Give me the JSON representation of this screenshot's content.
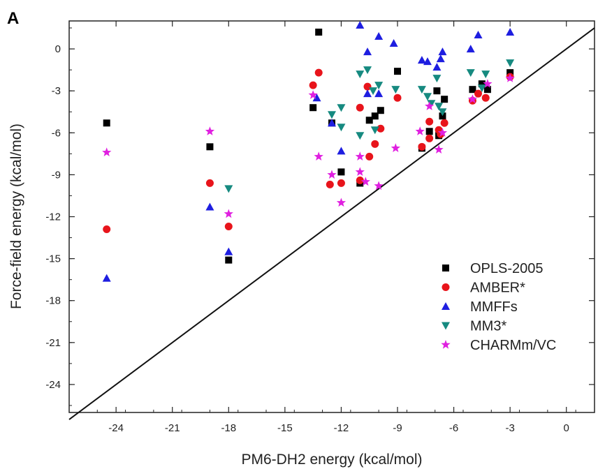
{
  "chart_data": {
    "type": "scatter",
    "panel_label": "A",
    "xlabel": "PM6-DH2 energy (kcal/mol)",
    "ylabel": "Force-field energy (kcal/mol)",
    "xlim": [
      -26.5,
      1.5
    ],
    "ylim": [
      -26,
      2
    ],
    "x_ticks": [
      -24,
      -21,
      -18,
      -15,
      -12,
      -9,
      -6,
      -3,
      0
    ],
    "y_ticks": [
      0,
      -3,
      -6,
      -9,
      -12,
      -15,
      -18,
      -21,
      -24
    ],
    "diagonal_line": {
      "from": [
        -26.5,
        -26.5
      ],
      "to": [
        1.5,
        1.5
      ]
    },
    "grid": false,
    "legend_position": "lower-right",
    "series": [
      {
        "name": "OPLS-2005",
        "marker": "square",
        "color": "#000000",
        "points": [
          [
            -24.5,
            -5.3
          ],
          [
            -19,
            -7
          ],
          [
            -18,
            -15.1
          ],
          [
            -13.5,
            -4.2
          ],
          [
            -13.2,
            1.2
          ],
          [
            -12.5,
            -5.3
          ],
          [
            -12,
            -8.8
          ],
          [
            -11,
            -9.6
          ],
          [
            -10.5,
            -5.1
          ],
          [
            -10.2,
            -4.8
          ],
          [
            -9.9,
            -4.4
          ],
          [
            -9,
            -1.6
          ],
          [
            -7.7,
            -7.1
          ],
          [
            -7.3,
            -5.9
          ],
          [
            -6.9,
            -3
          ],
          [
            -6.8,
            -6.2
          ],
          [
            -6.6,
            -4.8
          ],
          [
            -6.5,
            -3.6
          ],
          [
            -5,
            -2.9
          ],
          [
            -4.5,
            -2.5
          ],
          [
            -4.2,
            -2.9
          ],
          [
            -3,
            -1.7
          ]
        ]
      },
      {
        "name": "AMBER*",
        "marker": "circle",
        "color": "#e8141b",
        "points": [
          [
            -24.5,
            -12.9
          ],
          [
            -19,
            -9.6
          ],
          [
            -18,
            -12.7
          ],
          [
            -13.5,
            -2.6
          ],
          [
            -13.2,
            -1.7
          ],
          [
            -12.6,
            -9.7
          ],
          [
            -12,
            -9.6
          ],
          [
            -11,
            -4.2
          ],
          [
            -11,
            -9.4
          ],
          [
            -10.6,
            -2.7
          ],
          [
            -10.5,
            -7.7
          ],
          [
            -10.2,
            -6.8
          ],
          [
            -9.9,
            -5.7
          ],
          [
            -9,
            -3.5
          ],
          [
            -7.7,
            -7
          ],
          [
            -7.3,
            -6.4
          ],
          [
            -7.3,
            -5.2
          ],
          [
            -6.8,
            -5.8
          ],
          [
            -6.7,
            -6.1
          ],
          [
            -6.5,
            -5.3
          ],
          [
            -5,
            -3.7
          ],
          [
            -4.7,
            -3.2
          ],
          [
            -4.3,
            -3.5
          ],
          [
            -3,
            -2
          ]
        ]
      },
      {
        "name": "MMFFs",
        "marker": "triangle-up",
        "color": "#1e1ee0",
        "points": [
          [
            -24.5,
            -16.4
          ],
          [
            -19,
            -11.3
          ],
          [
            -18,
            -14.5
          ],
          [
            -13.3,
            -3.5
          ],
          [
            -12.5,
            -5.3
          ],
          [
            -12,
            -7.3
          ],
          [
            -11,
            1.7
          ],
          [
            -10.6,
            -0.2
          ],
          [
            -10.6,
            -3.2
          ],
          [
            -10,
            0.9
          ],
          [
            -10,
            -3.2
          ],
          [
            -9.2,
            0.4
          ],
          [
            -7.7,
            -0.8
          ],
          [
            -7.4,
            -0.9
          ],
          [
            -6.9,
            -1.3
          ],
          [
            -6.7,
            -0.7
          ],
          [
            -6.6,
            -0.2
          ],
          [
            -5.1,
            0
          ],
          [
            -4.7,
            1
          ],
          [
            -3,
            1.2
          ]
        ]
      },
      {
        "name": "MM3*",
        "marker": "triangle-down",
        "color": "#168a80",
        "points": [
          [
            -18,
            -10
          ],
          [
            -12.5,
            -4.7
          ],
          [
            -12,
            -4.2
          ],
          [
            -12,
            -5.6
          ],
          [
            -11,
            -1.8
          ],
          [
            -11,
            -6.2
          ],
          [
            -10.6,
            -1.5
          ],
          [
            -10.3,
            -3
          ],
          [
            -10.2,
            -5.8
          ],
          [
            -10,
            -2.6
          ],
          [
            -9.1,
            -2.9
          ],
          [
            -7.7,
            -2.9
          ],
          [
            -7.4,
            -3.4
          ],
          [
            -7.2,
            -3.9
          ],
          [
            -6.9,
            -2.1
          ],
          [
            -6.8,
            -4.1
          ],
          [
            -6.6,
            -4.5
          ],
          [
            -5.1,
            -1.7
          ],
          [
            -4.5,
            -2.8
          ],
          [
            -4.3,
            -1.8
          ],
          [
            -3,
            -1
          ]
        ]
      },
      {
        "name": "CHARMm/VC",
        "marker": "star",
        "color": "#e020e0",
        "points": [
          [
            -24.5,
            -7.4
          ],
          [
            -19,
            -5.9
          ],
          [
            -18,
            -11.8
          ],
          [
            -13.5,
            -3.3
          ],
          [
            -13.2,
            -7.7
          ],
          [
            -12.5,
            -9
          ],
          [
            -12,
            -11
          ],
          [
            -11,
            -7.7
          ],
          [
            -11,
            -8.8
          ],
          [
            -10.7,
            -9.5
          ],
          [
            -10,
            -9.8
          ],
          [
            -9.1,
            -7.1
          ],
          [
            -7.8,
            -5.9
          ],
          [
            -7.3,
            -4.1
          ],
          [
            -6.8,
            -7.2
          ],
          [
            -6.6,
            -6
          ],
          [
            -5,
            -3.6
          ],
          [
            -4.2,
            -2.5
          ],
          [
            -3,
            -2.1
          ]
        ]
      }
    ]
  }
}
